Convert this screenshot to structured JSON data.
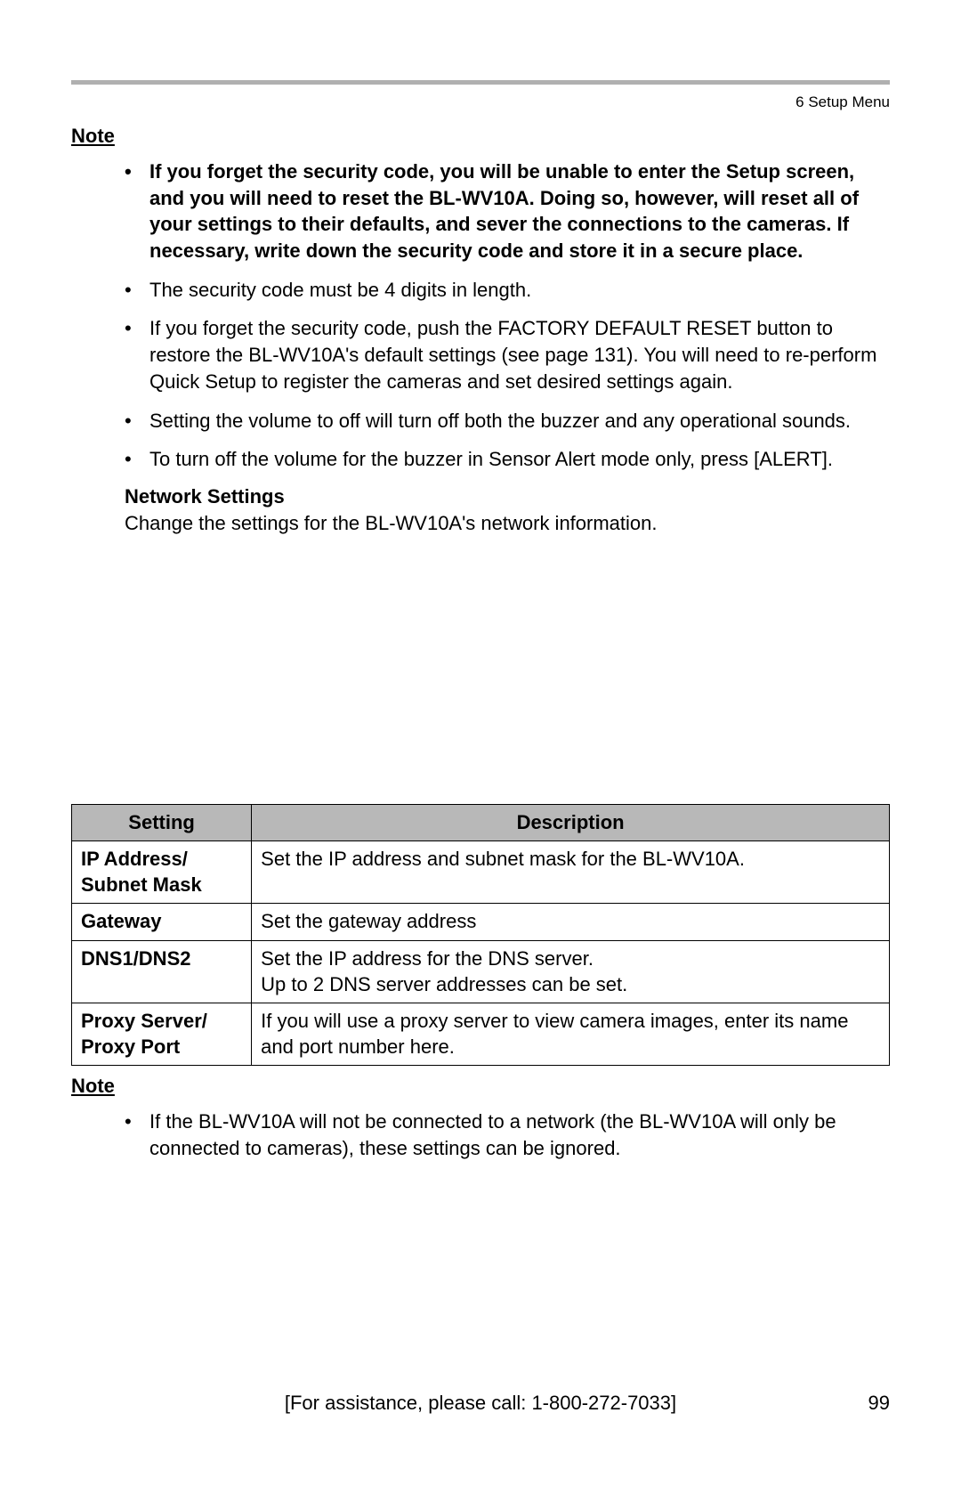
{
  "header": {
    "breadcrumb": "6   Setup Menu"
  },
  "note1": {
    "label": "Note",
    "items": [
      "If you forget the security code, you will be unable to enter the Setup screen, and you will need to reset the BL-WV10A. Doing so, however, will reset all of your settings to their defaults, and sever the connections to the cameras. If necessary, write down the security code and store it in a secure place.",
      "The security code must be 4 digits in length.",
      "If you forget the security code, push the FACTORY DEFAULT RESET button to restore the BL-WV10A's default settings (see page 131). You will need to re-perform Quick Setup to register the cameras and set desired settings again.",
      "Setting the volume to off will turn off both the buzzer and any operational sounds.",
      "To turn off the volume for the buzzer in Sensor Alert mode only, press [ALERT]."
    ]
  },
  "network": {
    "heading": "Network Settings",
    "body": "Change the settings for the BL-WV10A's network information."
  },
  "table": {
    "columns": [
      "Setting",
      "Description"
    ],
    "rows": [
      {
        "setting": "IP Address/ Subnet Mask",
        "desc": "Set the IP address and subnet mask for the BL-WV10A."
      },
      {
        "setting": "Gateway",
        "desc": "Set the gateway address"
      },
      {
        "setting": "DNS1/DNS2",
        "desc": "Set the IP address for the DNS server.\nUp to 2 DNS server addresses can be set."
      },
      {
        "setting": "Proxy Server/ Proxy Port",
        "desc": "If you will use a proxy server to view camera images, enter its name and port number here."
      }
    ],
    "header_bg": "#b8b8b8",
    "border_color": "#000000",
    "col_widths": [
      "22%",
      "78%"
    ]
  },
  "note2": {
    "label": "Note",
    "items": [
      "If the BL-WV10A will not be connected to a network (the BL-WV10A will only be connected to cameras), these settings can be ignored."
    ]
  },
  "footer": {
    "assist": "[For assistance, please call: 1-800-272-7033]",
    "page": "99"
  },
  "style": {
    "background_color": "#ffffff",
    "text_color": "#000000",
    "font_family": "Arial",
    "body_fontsize": 22,
    "header_fontsize": 17,
    "hr_color": "#b0b0b0"
  }
}
